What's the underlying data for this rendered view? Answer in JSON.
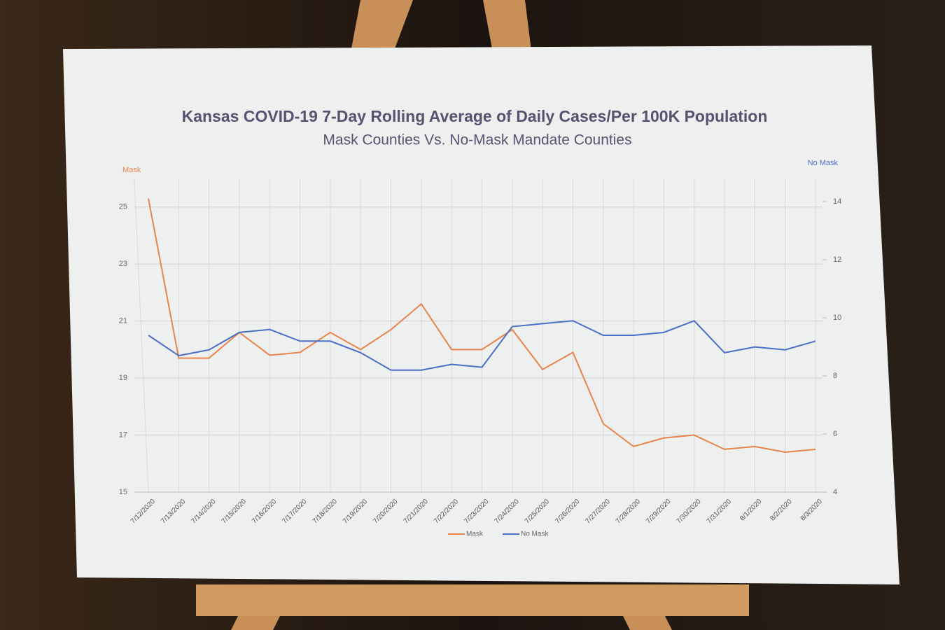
{
  "chart_data": {
    "type": "line",
    "title": "Kansas COVID-19 7-Day Rolling Average of Daily Cases/Per 100K Population",
    "subtitle": "Mask Counties Vs. No-Mask Mandate Counties",
    "y_label": "Mask",
    "y2_label": "No Mask",
    "categories": [
      "7/12/2020",
      "7/13/2020",
      "7/14/2020",
      "7/15/2020",
      "7/16/2020",
      "7/17/2020",
      "7/18/2020",
      "7/19/2020",
      "7/20/2020",
      "7/21/2020",
      "7/22/2020",
      "7/23/2020",
      "7/24/2020",
      "7/25/2020",
      "7/26/2020",
      "7/27/2020",
      "7/28/2020",
      "7/29/2020",
      "7/30/2020",
      "7/31/2020",
      "8/1/2020",
      "8/2/2020",
      "8/3/2020"
    ],
    "series": [
      {
        "name": "Mask",
        "color": "#e8834a",
        "values": [
          25.3,
          19.7,
          19.7,
          20.6,
          19.8,
          19.9,
          20.6,
          20.0,
          20.7,
          21.6,
          20.0,
          20.0,
          20.7,
          19.3,
          19.9,
          17.4,
          16.6,
          16.9,
          17.0,
          16.5,
          16.6,
          16.4,
          16.5
        ]
      },
      {
        "name": "No Mask",
        "color": "#4a6fc4",
        "axis": "y2",
        "values": [
          9.4,
          8.7,
          8.9,
          9.5,
          9.6,
          9.2,
          9.2,
          8.8,
          8.2,
          8.2,
          8.4,
          8.3,
          9.7,
          9.8,
          9.9,
          9.4,
          9.4,
          9.5,
          9.9,
          8.8,
          9.0,
          8.9,
          9.2
        ]
      }
    ],
    "ylim": [
      15,
      26
    ],
    "yticks": [
      15,
      17,
      19,
      21,
      23,
      25
    ],
    "y2lim": [
      4,
      14.8
    ],
    "y2ticks": [
      4,
      6,
      8,
      10,
      12,
      14
    ],
    "grid": true,
    "legend": "bottom"
  }
}
